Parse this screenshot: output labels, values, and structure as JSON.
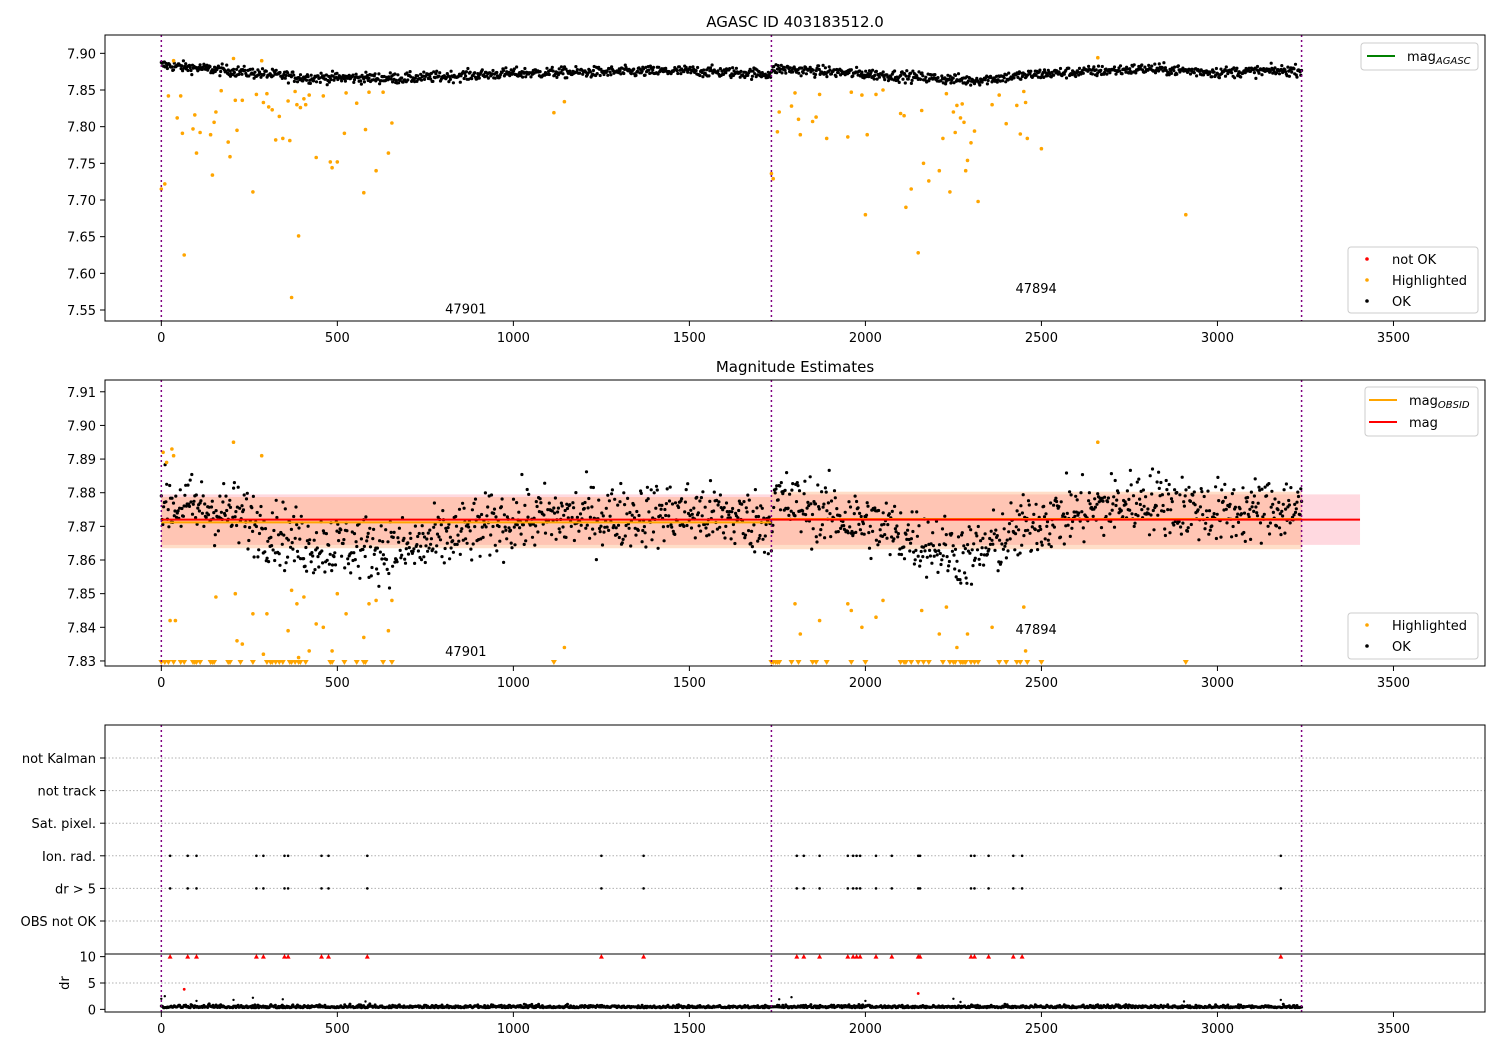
{
  "chart_data": [
    {
      "type": "scatter",
      "title": "AGASC ID 403183512.0",
      "xlim": [
        -160,
        3760
      ],
      "ylim": [
        7.535,
        7.925
      ],
      "xticks": [
        0,
        500,
        1000,
        1500,
        2000,
        2500,
        3000,
        3500
      ],
      "yticks": [
        7.55,
        7.6,
        7.65,
        7.7,
        7.75,
        7.8,
        7.85,
        7.9
      ],
      "obs_boundaries": [
        0,
        1733,
        3239
      ],
      "obs_labels": [
        {
          "text": "47901",
          "x": 865,
          "y": 7.545
        },
        {
          "text": "47894",
          "x": 2485,
          "y": 7.573
        }
      ],
      "legend_upper": [
        {
          "label": "mag",
          "sub": "AGASC",
          "color": "#008000"
        }
      ],
      "legend_lower": [
        {
          "label": "not OK",
          "color": "#ff0000"
        },
        {
          "label": "Highlighted",
          "color": "#ffa500"
        },
        {
          "label": "OK",
          "color": "#000000"
        }
      ],
      "ok_band": [
        {
          "x": 0,
          "y": 7.884
        },
        {
          "x": 200,
          "y": 7.876
        },
        {
          "x": 400,
          "y": 7.867
        },
        {
          "x": 700,
          "y": 7.866
        },
        {
          "x": 1000,
          "y": 7.873
        },
        {
          "x": 1500,
          "y": 7.876
        },
        {
          "x": 1733,
          "y": 7.872
        },
        {
          "x": 1740,
          "y": 7.879
        },
        {
          "x": 2000,
          "y": 7.872
        },
        {
          "x": 2300,
          "y": 7.863
        },
        {
          "x": 2500,
          "y": 7.872
        },
        {
          "x": 2800,
          "y": 7.879
        },
        {
          "x": 3000,
          "y": 7.874
        },
        {
          "x": 3239,
          "y": 7.877
        }
      ],
      "highlighted": [
        [
          0,
          7.715
        ],
        [
          10,
          7.722
        ],
        [
          20,
          7.842
        ],
        [
          35,
          7.89
        ],
        [
          45,
          7.812
        ],
        [
          55,
          7.842
        ],
        [
          60,
          7.791
        ],
        [
          65,
          7.625
        ],
        [
          90,
          7.797
        ],
        [
          95,
          7.816
        ],
        [
          100,
          7.764
        ],
        [
          110,
          7.792
        ],
        [
          140,
          7.789
        ],
        [
          145,
          7.734
        ],
        [
          150,
          7.806
        ],
        [
          155,
          7.82
        ],
        [
          170,
          7.849
        ],
        [
          190,
          7.779
        ],
        [
          195,
          7.759
        ],
        [
          205,
          7.893
        ],
        [
          210,
          7.836
        ],
        [
          215,
          7.795
        ],
        [
          230,
          7.836
        ],
        [
          260,
          7.711
        ],
        [
          270,
          7.844
        ],
        [
          285,
          7.89
        ],
        [
          290,
          7.833
        ],
        [
          300,
          7.845
        ],
        [
          305,
          7.827
        ],
        [
          315,
          7.823
        ],
        [
          325,
          7.782
        ],
        [
          335,
          7.814
        ],
        [
          345,
          7.784
        ],
        [
          360,
          7.835
        ],
        [
          365,
          7.781
        ],
        [
          370,
          7.567
        ],
        [
          380,
          7.848
        ],
        [
          385,
          7.83
        ],
        [
          390,
          7.651
        ],
        [
          395,
          7.826
        ],
        [
          405,
          7.838
        ],
        [
          410,
          7.83
        ],
        [
          420,
          7.843
        ],
        [
          440,
          7.758
        ],
        [
          460,
          7.842
        ],
        [
          480,
          7.752
        ],
        [
          485,
          7.744
        ],
        [
          500,
          7.752
        ],
        [
          520,
          7.791
        ],
        [
          525,
          7.846
        ],
        [
          555,
          7.832
        ],
        [
          575,
          7.71
        ],
        [
          580,
          7.796
        ],
        [
          590,
          7.847
        ],
        [
          610,
          7.74
        ],
        [
          630,
          7.847
        ],
        [
          645,
          7.764
        ],
        [
          655,
          7.805
        ],
        [
          1115,
          7.819
        ],
        [
          1145,
          7.834
        ],
        [
          1733,
          7.736
        ],
        [
          1738,
          7.729
        ],
        [
          1750,
          7.793
        ],
        [
          1755,
          7.82
        ],
        [
          1790,
          7.828
        ],
        [
          1800,
          7.846
        ],
        [
          1810,
          7.81
        ],
        [
          1815,
          7.789
        ],
        [
          1850,
          7.807
        ],
        [
          1860,
          7.813
        ],
        [
          1870,
          7.844
        ],
        [
          1890,
          7.784
        ],
        [
          1950,
          7.786
        ],
        [
          1960,
          7.847
        ],
        [
          1990,
          7.843
        ],
        [
          2000,
          7.68
        ],
        [
          2005,
          7.789
        ],
        [
          2030,
          7.844
        ],
        [
          2050,
          7.85
        ],
        [
          2100,
          7.818
        ],
        [
          2110,
          7.815
        ],
        [
          2115,
          7.69
        ],
        [
          2130,
          7.715
        ],
        [
          2150,
          7.628
        ],
        [
          2160,
          7.822
        ],
        [
          2165,
          7.75
        ],
        [
          2180,
          7.726
        ],
        [
          2210,
          7.74
        ],
        [
          2220,
          7.784
        ],
        [
          2230,
          7.845
        ],
        [
          2240,
          7.711
        ],
        [
          2250,
          7.82
        ],
        [
          2255,
          7.792
        ],
        [
          2260,
          7.829
        ],
        [
          2270,
          7.812
        ],
        [
          2275,
          7.831
        ],
        [
          2280,
          7.806
        ],
        [
          2285,
          7.74
        ],
        [
          2290,
          7.754
        ],
        [
          2300,
          7.778
        ],
        [
          2310,
          7.794
        ],
        [
          2320,
          7.698
        ],
        [
          2360,
          7.83
        ],
        [
          2380,
          7.843
        ],
        [
          2400,
          7.804
        ],
        [
          2430,
          7.829
        ],
        [
          2440,
          7.79
        ],
        [
          2450,
          7.848
        ],
        [
          2455,
          7.833
        ],
        [
          2460,
          7.784
        ],
        [
          2500,
          7.77
        ],
        [
          2660,
          7.894
        ],
        [
          2910,
          7.68
        ]
      ]
    },
    {
      "type": "scatter",
      "title": "Magnitude Estimates",
      "xlim": [
        -160,
        3760
      ],
      "ylim": [
        7.8285,
        7.9135
      ],
      "xticks": [
        0,
        500,
        1000,
        1500,
        2000,
        2500,
        3000,
        3500
      ],
      "yticks": [
        7.83,
        7.84,
        7.85,
        7.86,
        7.87,
        7.88,
        7.89,
        7.9,
        7.91
      ],
      "obs_boundaries": [
        0,
        1733,
        3239
      ],
      "obs_labels": [
        {
          "text": "47901",
          "x": 865,
          "y": 7.8315
        },
        {
          "text": "47894",
          "x": 2485,
          "y": 7.838
        }
      ],
      "mag": 7.872,
      "mag_band": [
        7.8645,
        7.8795
      ],
      "mag_band_xrange": [
        0,
        3405
      ],
      "obsid_mags": [
        {
          "x0": 0,
          "x1": 1733,
          "mag": 7.8712,
          "err": [
            7.8635,
            7.8787
          ]
        },
        {
          "x0": 1733,
          "x1": 3239,
          "mag": 7.8722,
          "err": [
            7.8632,
            7.8803
          ]
        }
      ],
      "legend_upper": [
        {
          "label": "mag",
          "sub": "OBSID",
          "color": "#ffa500"
        },
        {
          "label": "mag",
          "sub": "",
          "color": "#ff0000"
        }
      ],
      "legend_lower": [
        {
          "label": "Highlighted",
          "color": "#ffa500"
        },
        {
          "label": "OK",
          "color": "#000000"
        }
      ],
      "ok_band": [
        {
          "x": 0,
          "y": 7.877
        },
        {
          "x": 200,
          "y": 7.874
        },
        {
          "x": 400,
          "y": 7.865
        },
        {
          "x": 700,
          "y": 7.863
        },
        {
          "x": 1000,
          "y": 7.872
        },
        {
          "x": 1500,
          "y": 7.874
        },
        {
          "x": 1733,
          "y": 7.871
        },
        {
          "x": 1740,
          "y": 7.878
        },
        {
          "x": 2000,
          "y": 7.871
        },
        {
          "x": 2300,
          "y": 7.861
        },
        {
          "x": 2500,
          "y": 7.872
        },
        {
          "x": 2800,
          "y": 7.878
        },
        {
          "x": 3000,
          "y": 7.874
        },
        {
          "x": 3239,
          "y": 7.876
        }
      ],
      "highlighted": [
        [
          5,
          7.892
        ],
        [
          15,
          7.889
        ],
        [
          25,
          7.842
        ],
        [
          30,
          7.893
        ],
        [
          35,
          7.891
        ],
        [
          40,
          7.842
        ],
        [
          155,
          7.849
        ],
        [
          205,
          7.895
        ],
        [
          210,
          7.85
        ],
        [
          215,
          7.836
        ],
        [
          230,
          7.835
        ],
        [
          260,
          7.844
        ],
        [
          285,
          7.891
        ],
        [
          290,
          7.832
        ],
        [
          300,
          7.844
        ],
        [
          360,
          7.839
        ],
        [
          370,
          7.851
        ],
        [
          385,
          7.847
        ],
        [
          390,
          7.831
        ],
        [
          405,
          7.849
        ],
        [
          420,
          7.833
        ],
        [
          440,
          7.841
        ],
        [
          460,
          7.84
        ],
        [
          485,
          7.833
        ],
        [
          500,
          7.85
        ],
        [
          525,
          7.844
        ],
        [
          575,
          7.837
        ],
        [
          590,
          7.847
        ],
        [
          610,
          7.848
        ],
        [
          645,
          7.839
        ],
        [
          655,
          7.848
        ],
        [
          1145,
          7.834
        ],
        [
          1800,
          7.847
        ],
        [
          1815,
          7.838
        ],
        [
          1870,
          7.842
        ],
        [
          1950,
          7.847
        ],
        [
          1960,
          7.845
        ],
        [
          1990,
          7.84
        ],
        [
          2030,
          7.843
        ],
        [
          2050,
          7.848
        ],
        [
          2160,
          7.845
        ],
        [
          2210,
          7.838
        ],
        [
          2230,
          7.846
        ],
        [
          2260,
          7.834
        ],
        [
          2290,
          7.838
        ],
        [
          2360,
          7.84
        ],
        [
          2450,
          7.846
        ],
        [
          2455,
          7.833
        ],
        [
          2660,
          7.895
        ]
      ],
      "clipped_low": [
        0,
        10,
        20,
        35,
        55,
        65,
        90,
        95,
        100,
        110,
        140,
        145,
        150,
        190,
        195,
        225,
        260,
        300,
        310,
        315,
        325,
        335,
        345,
        365,
        370,
        380,
        390,
        395,
        410,
        480,
        485,
        520,
        555,
        575,
        580,
        630,
        655,
        1115,
        1733,
        1738,
        1745,
        1750,
        1755,
        1790,
        1810,
        1850,
        1860,
        1890,
        1960,
        2000,
        2100,
        2110,
        2115,
        2130,
        2150,
        2165,
        2180,
        2220,
        2240,
        2250,
        2255,
        2270,
        2275,
        2280,
        2285,
        2300,
        2310,
        2320,
        2380,
        2400,
        2430,
        2440,
        2460,
        2500,
        2910
      ]
    },
    {
      "type": "scatter",
      "title": "",
      "xlim": [
        -160,
        3760
      ],
      "obs_boundaries": [
        0,
        1733,
        3239
      ],
      "flag_rows": [
        "not Kalman",
        "not track",
        "Sat. pixel.",
        "Ion. rad.",
        "dr > 5",
        "OBS not OK"
      ],
      "flag_events": [
        25,
        75,
        100,
        270,
        290,
        350,
        360,
        455,
        475,
        585,
        1250,
        1370,
        1805,
        1825,
        1870,
        1950,
        1965,
        1975,
        1985,
        2030,
        2075,
        2150,
        2155,
        2300,
        2310,
        2350,
        2420,
        2445,
        3180
      ],
      "dr_ylabel": "dr",
      "dr_ylim": [
        -0.5,
        10.5
      ],
      "dr_yticks": [
        0,
        5,
        10
      ],
      "dr_outliers": [
        [
          65,
          3.8
        ],
        [
          2150,
          3.0
        ],
        [
          0,
          2.0
        ],
        [
          10,
          2.5
        ],
        [
          100,
          1.6
        ],
        [
          205,
          1.8
        ],
        [
          260,
          2.2
        ],
        [
          345,
          1.9
        ],
        [
          580,
          1.5
        ],
        [
          1755,
          1.9
        ],
        [
          1790,
          2.3
        ],
        [
          2000,
          1.6
        ],
        [
          2250,
          2.0
        ],
        [
          2270,
          1.4
        ],
        [
          2905,
          1.5
        ],
        [
          3180,
          1.8
        ]
      ]
    }
  ]
}
